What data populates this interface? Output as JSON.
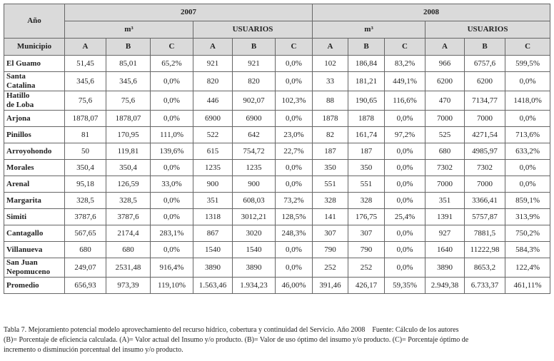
{
  "table": {
    "header": {
      "year_label": "Año",
      "years": [
        "2007",
        "2008"
      ],
      "groups": [
        "m³",
        "USUARIOS",
        "m³",
        "USUARIOS"
      ],
      "municipio_label": "Municipio",
      "columns": [
        "A",
        "B",
        "C",
        "A",
        "B",
        "C",
        "A",
        "B",
        "C",
        "A",
        "B",
        "C"
      ]
    },
    "rows": [
      [
        "El Guamo",
        "51,45",
        "85,01",
        "65,2%",
        "921",
        "921",
        "0,0%",
        "102",
        "186,84",
        "83,2%",
        "966",
        "6757,6",
        "599,5%"
      ],
      [
        "Santa\nCatalina",
        "345,6",
        "345,6",
        "0,0%",
        "820",
        "820",
        "0,0%",
        "33",
        "181,21",
        "449,1%",
        "6200",
        "6200",
        "0,0%"
      ],
      [
        "Hatillo\nde Loba",
        "75,6",
        "75,6",
        "0,0%",
        "446",
        "902,07",
        "102,3%",
        "88",
        "190,65",
        "116,6%",
        "470",
        "7134,77",
        "1418,0%"
      ],
      [
        "Arjona",
        "1878,07",
        "1878,07",
        "0,0%",
        "6900",
        "6900",
        "0,0%",
        "1878",
        "1878",
        "0,0%",
        "7000",
        "7000",
        "0,0%"
      ],
      [
        "Pinillos",
        "81",
        "170,95",
        "111,0%",
        "522",
        "642",
        "23,0%",
        "82",
        "161,74",
        "97,2%",
        "525",
        "4271,54",
        "713,6%"
      ],
      [
        "Arroyohondo",
        "50",
        "119,81",
        "139,6%",
        "615",
        "754,72",
        "22,7%",
        "187",
        "187",
        "0,0%",
        "680",
        "4985,97",
        "633,2%"
      ],
      [
        "Morales",
        "350,4",
        "350,4",
        "0,0%",
        "1235",
        "1235",
        "0,0%",
        "350",
        "350",
        "0,0%",
        "7302",
        "7302",
        "0,0%"
      ],
      [
        "Arenal",
        "95,18",
        "126,59",
        "33,0%",
        "900",
        "900",
        "0,0%",
        "551",
        "551",
        "0,0%",
        "7000",
        "7000",
        "0,0%"
      ],
      [
        "Margarita",
        "328,5",
        "328,5",
        "0,0%",
        "351",
        "608,03",
        "73,2%",
        "328",
        "328",
        "0,0%",
        "351",
        "3366,41",
        "859,1%"
      ],
      [
        "Simiti",
        "3787,6",
        "3787,6",
        "0,0%",
        "1318",
        "3012,21",
        "128,5%",
        "141",
        "176,75",
        "25,4%",
        "1391",
        "5757,87",
        "313,9%"
      ],
      [
        "Cantagallo",
        "567,65",
        "2174,4",
        "283,1%",
        "867",
        "3020",
        "248,3%",
        "307",
        "307",
        "0,0%",
        "927",
        "7881,5",
        "750,2%"
      ],
      [
        "Villanueva",
        "680",
        "680",
        "0,0%",
        "1540",
        "1540",
        "0,0%",
        "790",
        "790",
        "0,0%",
        "1640",
        "11222,98",
        "584,3%"
      ],
      [
        "San Juan\nNepomuceno",
        "249,07",
        "2531,48",
        "916,4%",
        "3890",
        "3890",
        "0,0%",
        "252",
        "252",
        "0,0%",
        "3890",
        "8653,2",
        "122,4%"
      ],
      [
        "Promedio",
        "656,93",
        "973,39",
        "119,10%",
        "1.563,46",
        "1.934,23",
        "46,00%",
        "391,46",
        "426,17",
        "59,35%",
        "2.949,38",
        "6.733,37",
        "461,11%"
      ]
    ]
  },
  "caption": {
    "title": "Tabla 7. Mejoramiento potencial modelo aprovechamiento del recurso hídrico, cobertura y continuidad del Servicio. Año 2008",
    "source": "Fuente: Cálculo de los autores",
    "lines": [
      "(B)= Porcentaje de eficiencia calculada. (A)= Valor actual del Insumo y/o producto. (B)= Valor de uso óptimo del insumo y/o producto. (C)= Porcentaje óptimo de",
      "incremento o disminución porcentual del insumo y/o producto."
    ]
  }
}
